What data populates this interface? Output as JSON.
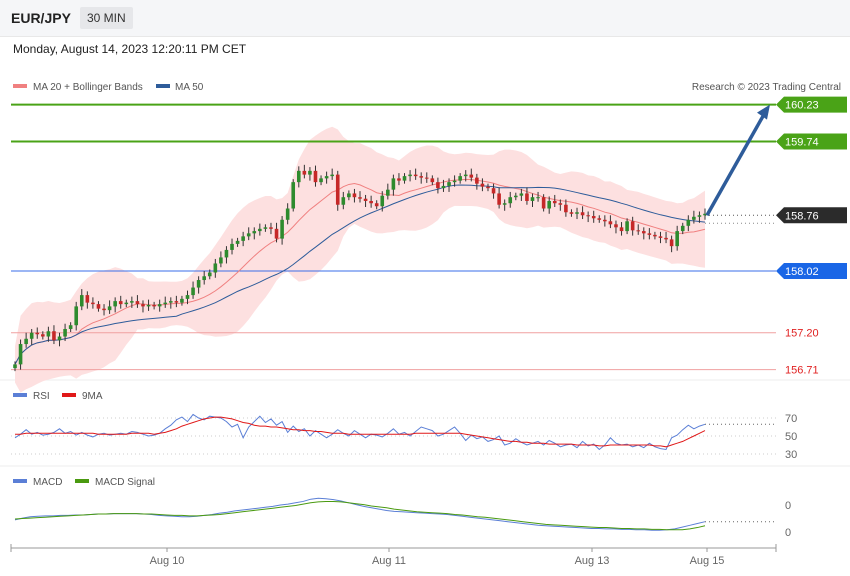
{
  "header": {
    "symbol": "EUR/JPY",
    "timeframe": "30 MIN"
  },
  "datetime": "Monday, August 14, 2023 12:20:11 PM CET",
  "credit": "Research © 2023 Trading Central",
  "legend_main": [
    {
      "label": "MA 20 + Bollinger Bands",
      "color": "#f08080"
    },
    {
      "label": "MA 50",
      "color": "#2e5c9a"
    }
  ],
  "legend_rsi": [
    {
      "label": "RSI",
      "color": "#5b7fd6"
    },
    {
      "label": "9MA",
      "color": "#e01818"
    }
  ],
  "legend_macd": [
    {
      "label": "MACD",
      "color": "#5b7fd6"
    },
    {
      "label": "MACD Signal",
      "color": "#4a9a10"
    }
  ],
  "chart_data": {
    "type": "candlestick",
    "x_ticks": [
      "Aug 10",
      "Aug 11",
      "Aug 13",
      "Aug 15"
    ],
    "current_price": "158.76",
    "levels": [
      {
        "value": "160.23",
        "role": "resistance target",
        "color": "#4aa317"
      },
      {
        "value": "159.74",
        "role": "resistance target",
        "color": "#4aa317"
      },
      {
        "value": "158.02",
        "role": "pivot",
        "color": "#1a66e6"
      },
      {
        "value": "157.20",
        "role": "support",
        "color": "#e02020"
      },
      {
        "value": "156.71",
        "role": "support",
        "color": "#e02020"
      }
    ],
    "projection": {
      "from": 158.76,
      "to": 160.23,
      "direction": "up"
    },
    "close_series": [
      156.78,
      157.05,
      157.12,
      157.2,
      157.18,
      157.15,
      157.22,
      157.1,
      157.15,
      157.25,
      157.3,
      157.55,
      157.7,
      157.6,
      157.58,
      157.52,
      157.5,
      157.55,
      157.62,
      157.58,
      157.6,
      157.62,
      157.58,
      157.55,
      157.57,
      157.55,
      157.58,
      157.6,
      157.62,
      157.6,
      157.65,
      157.7,
      157.8,
      157.9,
      157.95,
      158.0,
      158.12,
      158.2,
      158.3,
      158.38,
      158.42,
      158.48,
      158.52,
      158.55,
      158.58,
      158.6,
      158.58,
      158.45,
      158.7,
      158.85,
      159.2,
      159.35,
      159.3,
      159.35,
      159.2,
      159.25,
      159.28,
      159.3,
      158.9,
      159.0,
      159.05,
      159.0,
      158.98,
      158.95,
      158.92,
      158.88,
      159.02,
      159.1,
      159.25,
      159.22,
      159.28,
      159.3,
      159.28,
      159.26,
      159.25,
      159.2,
      159.12,
      159.15,
      159.2,
      159.22,
      159.28,
      159.3,
      159.26,
      159.18,
      159.14,
      159.12,
      159.05,
      158.9,
      158.92,
      159.0,
      159.02,
      159.05,
      158.95,
      159.0,
      159.0,
      158.85,
      158.95,
      158.92,
      158.9,
      158.8,
      158.78,
      158.8,
      158.76,
      158.75,
      158.72,
      158.7,
      158.68,
      158.64,
      158.6,
      158.55,
      158.68,
      158.56,
      158.55,
      158.52,
      158.5,
      158.48,
      158.46,
      158.44,
      158.35,
      158.55,
      158.62,
      158.7,
      158.74,
      158.76,
      158.78
    ],
    "rsi": {
      "levels": [
        "70",
        "50",
        "30"
      ],
      "values": [
        48,
        52,
        57,
        52,
        54,
        51,
        52,
        54,
        58,
        53,
        55,
        51,
        54,
        51,
        49,
        52,
        53,
        51,
        52,
        53,
        52,
        55,
        54,
        52,
        50,
        51,
        53,
        58,
        62,
        68,
        71,
        66,
        74,
        70,
        68,
        72,
        71,
        70,
        66,
        60,
        63,
        48,
        60,
        66,
        72,
        65,
        69,
        62,
        66,
        54,
        61,
        55,
        58,
        50,
        56,
        52,
        48,
        52,
        57,
        53,
        50,
        56,
        52,
        48,
        52,
        51,
        49,
        53,
        58,
        52,
        54,
        50,
        55,
        60,
        58,
        56,
        50,
        52,
        56,
        60,
        53,
        45,
        51,
        47,
        49,
        44,
        46,
        50,
        40,
        42,
        47,
        43,
        40,
        42,
        44,
        40,
        45,
        42,
        38,
        40,
        41,
        37,
        44,
        39,
        41,
        35,
        40,
        48,
        42,
        40,
        41,
        38,
        40,
        37,
        42,
        38,
        36,
        35,
        48,
        51,
        57,
        62,
        58,
        61,
        63
      ]
    },
    "rsi_ma": [
      52,
      52,
      53,
      53,
      53,
      53,
      53,
      53,
      53,
      53,
      53,
      53,
      53,
      53,
      53,
      52,
      52,
      52,
      52,
      52,
      52,
      53,
      53,
      53,
      53,
      52,
      53,
      54,
      56,
      58,
      61,
      63,
      65,
      67,
      69,
      70,
      71,
      71,
      70,
      69,
      67,
      65,
      64,
      62,
      61,
      61,
      60,
      60,
      59,
      58,
      57,
      57,
      56,
      56,
      55,
      55,
      54,
      53,
      53,
      53,
      52,
      52,
      52,
      52,
      52,
      52,
      52,
      52,
      52,
      52,
      52,
      52,
      53,
      53,
      53,
      53,
      53,
      53,
      53,
      53,
      53,
      52,
      51,
      50,
      49,
      48,
      47,
      46,
      45,
      44,
      44,
      43,
      43,
      42,
      42,
      42,
      41,
      41,
      41,
      41,
      41,
      40,
      40,
      40,
      40,
      39,
      39,
      40,
      40,
      40,
      40,
      40,
      40,
      40,
      40,
      39,
      39,
      38,
      40,
      42,
      44,
      47,
      50,
      53,
      56
    ],
    "macd": {
      "zero_labels": [
        "0",
        "0"
      ],
      "values": [
        -0.02,
        0.02,
        0.05,
        0.06,
        0.07,
        0.07,
        0.08,
        0.08,
        0.09,
        0.09,
        0.1,
        0.11,
        0.11,
        0.12,
        0.12,
        0.12,
        0.12,
        0.11,
        0.1,
        0.08,
        0.07,
        0.06,
        0.05,
        0.05,
        0.06,
        0.08,
        0.1,
        0.13,
        0.15,
        0.18,
        0.2,
        0.22,
        0.24,
        0.26,
        0.28,
        0.31,
        0.33,
        0.36,
        0.39,
        0.44,
        0.46,
        0.45,
        0.43,
        0.4,
        0.36,
        0.32,
        0.28,
        0.25,
        0.22,
        0.19,
        0.17,
        0.16,
        0.15,
        0.14,
        0.13,
        0.12,
        0.11,
        0.1,
        0.08,
        0.06,
        0.04,
        0.02,
        0.0,
        -0.02,
        -0.04,
        -0.06,
        -0.08,
        -0.1,
        -0.12,
        -0.14,
        -0.15,
        -0.16,
        -0.17,
        -0.18,
        -0.19,
        -0.2,
        -0.21,
        -0.21,
        -0.22,
        -0.22,
        -0.23,
        -0.23,
        -0.24,
        -0.24,
        -0.25,
        -0.25,
        -0.24,
        -0.22,
        -0.18,
        -0.14,
        -0.1,
        -0.06
      ]
    },
    "macd_signal": [
      0.0,
      0.01,
      0.02,
      0.03,
      0.04,
      0.05,
      0.06,
      0.07,
      0.08,
      0.09,
      0.1,
      0.11,
      0.11,
      0.12,
      0.12,
      0.12,
      0.12,
      0.11,
      0.11,
      0.1,
      0.09,
      0.08,
      0.08,
      0.07,
      0.07,
      0.08,
      0.09,
      0.1,
      0.12,
      0.14,
      0.16,
      0.18,
      0.2,
      0.22,
      0.24,
      0.26,
      0.28,
      0.3,
      0.33,
      0.36,
      0.38,
      0.39,
      0.39,
      0.38,
      0.36,
      0.34,
      0.32,
      0.29,
      0.27,
      0.25,
      0.22,
      0.2,
      0.18,
      0.16,
      0.15,
      0.14,
      0.13,
      0.12,
      0.1,
      0.09,
      0.07,
      0.05,
      0.04,
      0.02,
      0.0,
      -0.02,
      -0.04,
      -0.06,
      -0.08,
      -0.1,
      -0.12,
      -0.13,
      -0.14,
      -0.15,
      -0.16,
      -0.17,
      -0.18,
      -0.19,
      -0.19,
      -0.2,
      -0.21,
      -0.21,
      -0.22,
      -0.22,
      -0.23,
      -0.23,
      -0.24,
      -0.24,
      -0.24,
      -0.22,
      -0.19,
      -0.15
    ]
  }
}
